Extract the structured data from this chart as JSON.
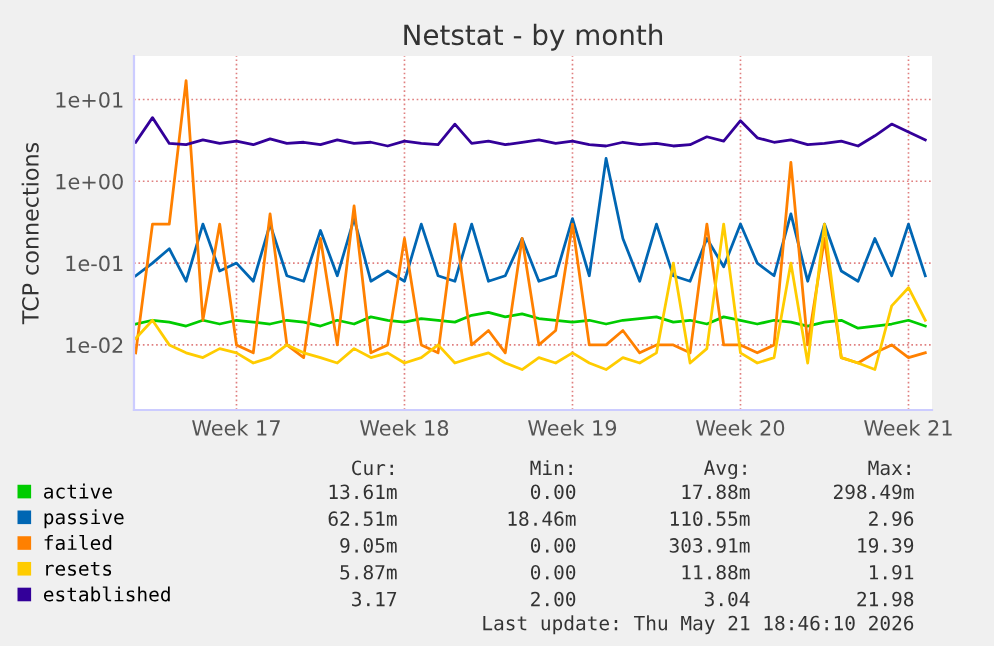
{
  "chart_data": {
    "type": "line",
    "title": "Netstat - by month",
    "ylabel": "TCP connections",
    "log": "y",
    "grid": true,
    "legend": "bottom left",
    "marker": "none",
    "line_style": "solid",
    "categories": [
      null,
      null,
      null,
      null,
      null,
      null,
      "Week 17",
      null,
      null,
      null,
      null,
      null,
      null,
      null,
      null,
      null,
      "Week 18",
      null,
      null,
      null,
      null,
      null,
      null,
      null,
      null,
      null,
      "Week 19",
      null,
      null,
      null,
      null,
      null,
      null,
      null,
      null,
      null,
      "Week 20",
      null,
      null,
      null,
      null,
      null,
      null,
      null,
      null,
      null,
      "Week 21",
      null
    ],
    "ylim": [
      0.0016,
      34
    ],
    "yticks": [
      {
        "value": 0.01,
        "label": "1e-02"
      },
      {
        "value": 0.1,
        "label": "1e-01"
      },
      {
        "value": 1,
        "label": "1e+00"
      },
      {
        "value": 10,
        "label": "1e+01"
      }
    ],
    "series": [
      {
        "name": "active",
        "color": "#00cc00",
        "values": [
          0.018,
          0.02,
          0.019,
          0.017,
          0.02,
          0.018,
          0.02,
          0.019,
          0.018,
          0.02,
          0.019,
          0.017,
          0.02,
          0.018,
          0.022,
          0.02,
          0.019,
          0.021,
          0.02,
          0.019,
          0.023,
          0.025,
          0.022,
          0.024,
          0.021,
          0.02,
          0.019,
          0.02,
          0.018,
          0.02,
          0.021,
          0.022,
          0.019,
          0.02,
          0.018,
          0.022,
          0.02,
          0.018,
          0.02,
          0.019,
          0.017,
          0.019,
          0.02,
          0.016,
          0.017,
          0.018,
          0.02,
          0.017
        ]
      },
      {
        "name": "passive",
        "color": "#0066b3",
        "values": [
          0.07,
          0.1,
          0.15,
          0.06,
          0.3,
          0.08,
          0.1,
          0.06,
          0.3,
          0.07,
          0.06,
          0.25,
          0.07,
          0.35,
          0.06,
          0.08,
          0.06,
          0.3,
          0.07,
          0.06,
          0.3,
          0.06,
          0.07,
          0.2,
          0.06,
          0.07,
          0.35,
          0.07,
          1.9,
          0.2,
          0.06,
          0.3,
          0.07,
          0.06,
          0.2,
          0.09,
          0.3,
          0.1,
          0.07,
          0.4,
          0.06,
          0.3,
          0.08,
          0.06,
          0.2,
          0.07,
          0.3,
          0.07
        ]
      },
      {
        "name": "failed",
        "color": "#ff8000",
        "values": [
          0.008,
          0.3,
          0.3,
          17,
          0.02,
          0.3,
          0.01,
          0.008,
          0.4,
          0.01,
          0.007,
          0.2,
          0.01,
          0.5,
          0.008,
          0.01,
          0.2,
          0.01,
          0.008,
          0.3,
          0.01,
          0.015,
          0.008,
          0.2,
          0.01,
          0.015,
          0.3,
          0.01,
          0.01,
          0.015,
          0.008,
          0.01,
          0.01,
          0.008,
          0.3,
          0.01,
          0.01,
          0.008,
          0.01,
          1.7,
          0.01,
          0.2,
          0.007,
          0.006,
          0.008,
          0.01,
          0.007,
          0.008
        ]
      },
      {
        "name": "resets",
        "color": "#ffcc00",
        "values": [
          0.012,
          0.02,
          0.01,
          0.008,
          0.007,
          0.009,
          0.008,
          0.006,
          0.007,
          0.01,
          0.008,
          0.007,
          0.006,
          0.009,
          0.007,
          0.008,
          0.006,
          0.007,
          0.01,
          0.006,
          0.007,
          0.008,
          0.006,
          0.005,
          0.007,
          0.006,
          0.008,
          0.006,
          0.005,
          0.007,
          0.006,
          0.008,
          0.1,
          0.006,
          0.009,
          0.3,
          0.008,
          0.006,
          0.007,
          0.1,
          0.006,
          0.3,
          0.007,
          0.006,
          0.005,
          0.03,
          0.05,
          0.02
        ]
      },
      {
        "name": "established",
        "color": "#330099",
        "values": [
          3.0,
          6.0,
          2.9,
          2.8,
          3.2,
          2.9,
          3.1,
          2.8,
          3.3,
          2.9,
          3.0,
          2.8,
          3.2,
          2.9,
          3.0,
          2.7,
          3.1,
          2.9,
          2.8,
          5.0,
          2.9,
          3.1,
          2.8,
          3.0,
          3.2,
          2.9,
          3.1,
          2.8,
          2.7,
          3.0,
          2.8,
          2.9,
          2.7,
          2.8,
          3.5,
          3.1,
          5.5,
          3.4,
          3.0,
          3.2,
          2.8,
          2.9,
          3.1,
          2.7,
          3.6,
          5.0,
          4.0,
          3.2
        ]
      }
    ],
    "annotations": [
      "Cur:",
      "Min:",
      "Avg:",
      "Max:",
      "13.61m",
      "0.00",
      "17.88m",
      "298.49m",
      "62.51m",
      "18.46m",
      "110.55m",
      "2.96",
      "9.05m",
      "0.00",
      "303.91m",
      "19.39",
      "5.87m",
      "0.00",
      "11.88m",
      "1.91",
      "3.17",
      "2.00",
      "3.04",
      "21.98",
      "Last update: Thu May 21 18:46:10 2026"
    ]
  }
}
